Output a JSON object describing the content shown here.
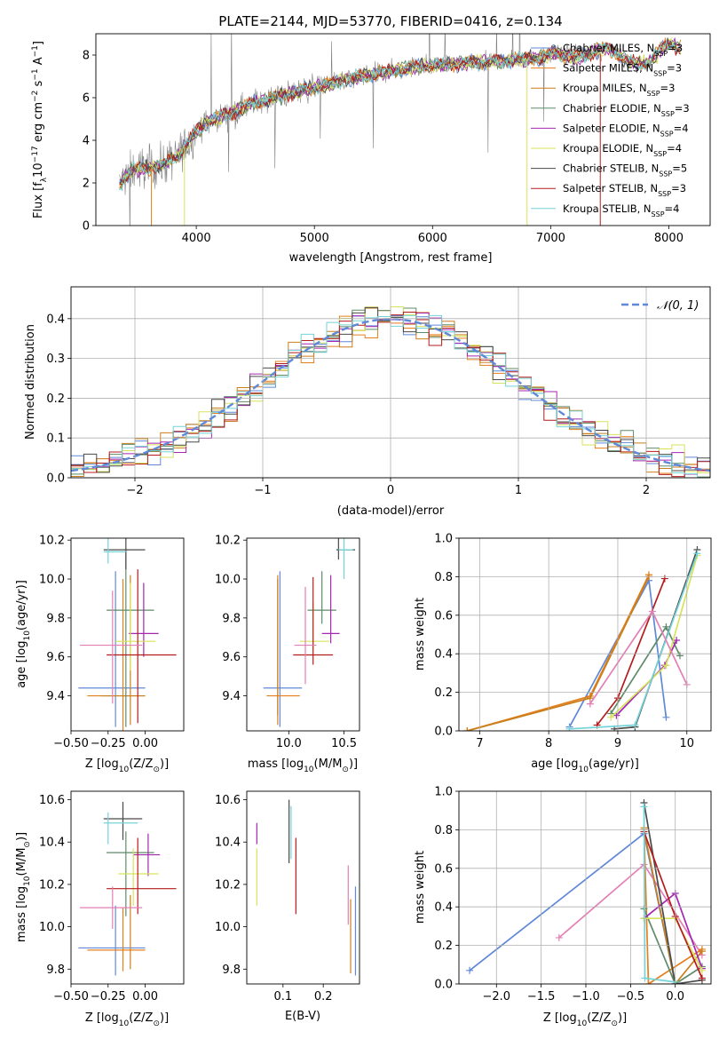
{
  "figure": {
    "title": "PLATE=2144, MJD=53770, FIBERID=0416, z=0.134"
  },
  "colors": {
    "Chabrier MILES": "#5f88d8",
    "Salpeter MILES": "#e57f1c",
    "Kroupa MILES": "#c97f1c",
    "Chabrier ELODIE": "#5e8b69",
    "Salpeter ELODIE": "#a526b0",
    "Kroupa ELODIE": "#d7e35a",
    "Chabrier STELIB": "#4a4a4a",
    "Salpeter STELIB": "#b51c1c",
    "Kroupa STELIB": "#74d3d8",
    "pink": "#e37fb5",
    "normal": "#5f88d8",
    "obs": "#808080"
  },
  "chart_data": [
    {
      "id": "spectrum",
      "type": "line",
      "xlabel": "wavelength [Angstrom, rest frame]",
      "ylabel": "Flux [f",
      "ylabel_parts": [
        "Flux [f",
        "λ",
        "10",
        "−17",
        " erg cm",
        "−2",
        " s",
        "−1",
        " A",
        "−1",
        "]"
      ],
      "xlim": [
        3150,
        8350
      ],
      "ylim": [
        0,
        9
      ],
      "xticks": [
        4000,
        5000,
        6000,
        7000,
        8000
      ],
      "yticks": [
        0,
        2,
        4,
        6,
        8
      ],
      "legend": "upper right",
      "continuum": {
        "x": [
          3350,
          3450,
          3550,
          3700,
          3850,
          4000,
          4100,
          4300,
          4500,
          4800,
          5100,
          5300,
          5600,
          5900,
          6200,
          6500,
          6800,
          7000,
          7200,
          7400,
          7600,
          7800,
          8000,
          8100
        ],
        "y": [
          1.9,
          2.6,
          2.7,
          2.8,
          3.3,
          4.4,
          4.9,
          5.3,
          5.8,
          6.2,
          6.6,
          6.9,
          7.2,
          7.5,
          7.6,
          7.7,
          7.8,
          8.0,
          8.2,
          8.1,
          7.8,
          7.9,
          8.3,
          8.0
        ]
      },
      "series": [
        {
          "name": "Chabrier MILES",
          "label": "Chabrier MILES, N",
          "sub": "SSP",
          "n": "=3"
        },
        {
          "name": "Salpeter MILES",
          "label": "Salpeter MILES, N",
          "sub": "SSP",
          "n": "=3"
        },
        {
          "name": "Kroupa MILES",
          "label": "Kroupa MILES, N",
          "sub": "SSP",
          "n": "=3"
        },
        {
          "name": "Chabrier ELODIE",
          "label": "Chabrier ELODIE, N",
          "sub": "SSP",
          "n": "=3"
        },
        {
          "name": "Salpeter ELODIE",
          "label": "Salpeter ELODIE, N",
          "sub": "SSP",
          "n": "=4"
        },
        {
          "name": "Kroupa ELODIE",
          "label": "Kroupa ELODIE, N",
          "sub": "SSP",
          "n": "=4"
        },
        {
          "name": "Chabrier STELIB",
          "label": "Chabrier STELIB, N",
          "sub": "SSP",
          "n": "=5"
        },
        {
          "name": "Salpeter STELIB",
          "label": "Salpeter STELIB, N",
          "sub": "SSP",
          "n": "=3"
        },
        {
          "name": "Kroupa STELIB",
          "label": "Kroupa STELIB, N",
          "sub": "SSP",
          "n": "=4"
        }
      ]
    },
    {
      "id": "residuals",
      "type": "bar",
      "xlabel": "(data-model)/error",
      "ylabel": "Normed distribution",
      "xlim": [
        -2.5,
        2.5
      ],
      "ylim": [
        0,
        0.48
      ],
      "xticks": [
        -2,
        -1,
        0,
        1,
        2
      ],
      "yticks": [
        0.0,
        0.1,
        0.2,
        0.3,
        0.4
      ],
      "grid": true,
      "legend_label": "N(0,1)",
      "legend_parts": [
        "𝒩",
        "(0, 1)"
      ],
      "bin_width": 0.1
    },
    {
      "id": "age_vs_Z",
      "type": "scatter",
      "xlabel_parts": [
        "Z [log",
        "10",
        "(Z/Z",
        "⊙",
        ")]"
      ],
      "ylabel_parts": [
        "age  [log",
        "10",
        "(age/yr)]"
      ],
      "xlim": [
        -0.5,
        0.26
      ],
      "ylim": [
        9.22,
        10.21
      ],
      "xticks": [
        -0.5,
        -0.25,
        0.0
      ],
      "yticks": [
        9.4,
        9.6,
        9.8,
        10.0,
        10.2
      ],
      "points": [
        {
          "s": "Chabrier MILES",
          "x": -0.2,
          "xerr": [
            0.25,
            0.2
          ],
          "y": 9.44,
          "yerr": [
            0.2,
            0.6
          ]
        },
        {
          "s": "Salpeter MILES",
          "x": -0.15,
          "xerr": [
            0.24,
            0.15
          ],
          "y": 9.4,
          "yerr": [
            0.2,
            0.6
          ]
        },
        {
          "s": "Kroupa MILES",
          "x": -0.1,
          "xerr": [
            0.2,
            0.1
          ],
          "y": 9.4,
          "yerr": [
            0.15,
            0.62
          ]
        },
        {
          "s": "Chabrier ELODIE",
          "x": -0.13,
          "xerr": [
            0.13,
            0.19
          ],
          "y": 9.84,
          "yerr": [
            0.6,
            0.3
          ]
        },
        {
          "s": "Salpeter ELODIE",
          "x": -0.01,
          "xerr": [
            0.1,
            0.1
          ],
          "y": 9.72,
          "yerr": [
            0.12,
            0.26
          ]
        },
        {
          "s": "Kroupa ELODIE",
          "x": -0.1,
          "xerr": [
            0.1,
            0.17
          ],
          "y": 9.68,
          "yerr": [
            0.15,
            0.3
          ]
        },
        {
          "s": "Chabrier STELIB",
          "x": -0.13,
          "xerr": [
            0.15,
            0.13
          ],
          "y": 10.15,
          "yerr": [
            0.1,
            0.06
          ]
        },
        {
          "s": "Salpeter STELIB",
          "x": -0.05,
          "xerr": [
            0.21,
            0.26
          ],
          "y": 9.61,
          "yerr": [
            0.35,
            0.44
          ]
        },
        {
          "s": "Kroupa STELIB",
          "x": -0.25,
          "xerr": [
            0.03,
            0.12
          ],
          "y": 10.14,
          "yerr": [
            0.06,
            0.07
          ]
        },
        {
          "s": "pink",
          "x": -0.22,
          "xerr": [
            0.22,
            0.2
          ],
          "y": 9.66,
          "yerr": [
            0.3,
            0.28
          ]
        }
      ]
    },
    {
      "id": "age_vs_mass",
      "type": "scatter",
      "xlabel_parts": [
        "mass [log",
        "10",
        "(M/M",
        "⊙",
        ")]"
      ],
      "xlim": [
        9.62,
        10.64
      ],
      "ylim": [
        9.22,
        10.21
      ],
      "xticks": [
        10.0,
        10.5
      ],
      "yticks": [
        9.4,
        9.6,
        9.8,
        10.0,
        10.2
      ],
      "points": [
        {
          "s": "Chabrier MILES",
          "x": 9.92,
          "xerr": [
            0.15,
            0.2
          ],
          "y": 9.44,
          "yerr": [
            0.2,
            0.6
          ]
        },
        {
          "s": "Salpeter MILES",
          "x": 9.9,
          "xerr": [
            0.1,
            0.2
          ],
          "y": 9.4,
          "yerr": [
            0.15,
            0.62
          ]
        },
        {
          "s": "Chabrier ELODIE",
          "x": 10.3,
          "xerr": [
            0.13,
            0.13
          ],
          "y": 9.84,
          "yerr": [
            0.07,
            0.2
          ]
        },
        {
          "s": "Salpeter ELODIE",
          "x": 10.38,
          "xerr": [
            0.08,
            0.08
          ],
          "y": 9.72,
          "yerr": [
            0.05,
            0.3
          ]
        },
        {
          "s": "Kroupa ELODIE",
          "x": 10.22,
          "xerr": [
            0.12,
            0.15
          ],
          "y": 9.68,
          "yerr": [
            0.05,
            0.2
          ]
        },
        {
          "s": "Chabrier STELIB",
          "x": 10.45,
          "xerr": [
            0.02,
            0.15
          ],
          "y": 10.15,
          "yerr": [
            0.05,
            0.06
          ]
        },
        {
          "s": "Salpeter STELIB",
          "x": 10.22,
          "xerr": [
            0.18,
            0.18
          ],
          "y": 9.61,
          "yerr": [
            0.05,
            0.4
          ]
        },
        {
          "s": "Kroupa STELIB",
          "x": 10.5,
          "xerr": [
            0.05,
            0.08
          ],
          "y": 10.15,
          "yerr": [
            0.15,
            0.07
          ]
        },
        {
          "s": "pink",
          "x": 10.15,
          "xerr": [
            0.1,
            0.1
          ],
          "y": 9.66,
          "yerr": [
            0.2,
            0.3
          ]
        },
        {
          "s": "Kroupa MILES",
          "x": 9.9,
          "xerr": [
            0,
            0
          ],
          "y": 9.6,
          "yerr": [
            0.3,
            0.4
          ]
        }
      ]
    },
    {
      "id": "massweight_vs_age",
      "type": "line",
      "xlabel_parts": [
        "age  [log",
        "10",
        "(age/yr)]"
      ],
      "ylabel": "mass weight",
      "xlim": [
        6.7,
        10.35
      ],
      "ylim": [
        0,
        1
      ],
      "xticks": [
        7,
        8,
        9,
        10
      ],
      "yticks": [
        0.0,
        0.2,
        0.4,
        0.6,
        0.8,
        1.0
      ],
      "grid": true,
      "series": [
        {
          "s": "Chabrier MILES",
          "x": [
            8.3,
            9.45,
            9.7
          ],
          "y": [
            0.02,
            0.78,
            0.07
          ]
        },
        {
          "s": "Salpeter MILES",
          "x": [
            6.82,
            8.6,
            9.45
          ],
          "y": [
            0.0,
            0.18,
            0.81
          ]
        },
        {
          "s": "Kroupa MILES",
          "x": [
            6.82,
            8.6,
            9.45
          ],
          "y": [
            0.0,
            0.17,
            0.8
          ]
        },
        {
          "s": "Chabrier ELODIE",
          "x": [
            8.9,
            9.7,
            9.9
          ],
          "y": [
            0.09,
            0.54,
            0.39
          ]
        },
        {
          "s": "Salpeter ELODIE",
          "x": [
            8.98,
            9.68,
            9.85
          ],
          "y": [
            0.08,
            0.34,
            0.47
          ]
        },
        {
          "s": "Kroupa ELODIE",
          "x": [
            8.9,
            9.7,
            10.15
          ],
          "y": [
            0.07,
            0.34,
            0.91
          ]
        },
        {
          "s": "Chabrier STELIB",
          "x": [
            8.95,
            9.25,
            10.15
          ],
          "y": [
            0.01,
            0.02,
            0.94
          ]
        },
        {
          "s": "Salpeter STELIB",
          "x": [
            8.7,
            9.0,
            9.68
          ],
          "y": [
            0.03,
            0.17,
            0.79
          ]
        },
        {
          "s": "Kroupa STELIB",
          "x": [
            8.3,
            9.25,
            10.15
          ],
          "y": [
            0.01,
            0.03,
            0.92
          ]
        },
        {
          "s": "pink",
          "x": [
            8.6,
            9.5,
            10.0
          ],
          "y": [
            0.14,
            0.62,
            0.24
          ]
        }
      ]
    },
    {
      "id": "mass_vs_Z",
      "type": "scatter",
      "xlabel_parts": [
        "Z [log",
        "10",
        "(Z/Z",
        "⊙",
        ")]"
      ],
      "ylabel_parts": [
        "mass [log",
        "10",
        "(M/M",
        "⊙",
        ")]"
      ],
      "xlim": [
        -0.5,
        0.26
      ],
      "ylim": [
        9.73,
        10.64
      ],
      "xticks": [
        -0.5,
        -0.25,
        0.0
      ],
      "yticks": [
        9.8,
        10.0,
        10.2,
        10.4,
        10.6
      ],
      "points": [
        {
          "s": "Chabrier MILES",
          "x": -0.2,
          "xerr": [
            0.25,
            0.2
          ],
          "y": 9.9,
          "yerr": [
            0.13,
            0.2
          ]
        },
        {
          "s": "Salpeter MILES",
          "x": -0.15,
          "xerr": [
            0.24,
            0.15
          ],
          "y": 9.89,
          "yerr": [
            0.1,
            0.2
          ]
        },
        {
          "s": "Kroupa MILES",
          "x": -0.1,
          "xerr": [
            0.0,
            0.0
          ],
          "y": 9.9,
          "yerr": [
            0.1,
            0.25
          ]
        },
        {
          "s": "Chabrier ELODIE",
          "x": -0.13,
          "xerr": [
            0.13,
            0.19
          ],
          "y": 10.35,
          "yerr": [
            0.3,
            0.1
          ]
        },
        {
          "s": "Salpeter ELODIE",
          "x": 0.02,
          "xerr": [
            0.1,
            0.08
          ],
          "y": 10.34,
          "yerr": [
            0.1,
            0.1
          ]
        },
        {
          "s": "Kroupa ELODIE",
          "x": -0.08,
          "xerr": [
            0.1,
            0.17
          ],
          "y": 10.25,
          "yerr": [
            0.15,
            0.12
          ]
        },
        {
          "s": "Chabrier STELIB",
          "x": -0.15,
          "xerr": [
            0.13,
            0.13
          ],
          "y": 10.51,
          "yerr": [
            0.1,
            0.08
          ]
        },
        {
          "s": "Salpeter STELIB",
          "x": -0.05,
          "xerr": [
            0.21,
            0.26
          ],
          "y": 10.18,
          "yerr": [
            0.12,
            0.24
          ]
        },
        {
          "s": "Kroupa STELIB",
          "x": -0.25,
          "xerr": [
            0.03,
            0.2
          ],
          "y": 10.49,
          "yerr": [
            0.1,
            0.05
          ]
        },
        {
          "s": "pink",
          "x": -0.22,
          "xerr": [
            0.22,
            0.2
          ],
          "y": 10.09,
          "yerr": [
            0.1,
            0.1
          ]
        }
      ]
    },
    {
      "id": "ebv",
      "type": "scatter",
      "xlabel": "E(B-V)",
      "xlim": [
        0.01,
        0.29
      ],
      "ylim": [
        9.73,
        10.64
      ],
      "xticks": [
        0.1,
        0.2
      ],
      "yticks": [
        9.8,
        10.0,
        10.2,
        10.4,
        10.6
      ],
      "points": [
        {
          "s": "Salpeter ELODIE",
          "x": 0.035,
          "y": 10.44,
          "yerr": [
            0.05,
            0.05
          ]
        },
        {
          "s": "Kroupa ELODIE",
          "x": 0.035,
          "y": 10.25,
          "yerr": [
            0.15,
            0.12
          ]
        },
        {
          "s": "Chabrier STELIB",
          "x": 0.115,
          "y": 10.45,
          "yerr": [
            0.15,
            0.15
          ]
        },
        {
          "s": "Kroupa STELIB",
          "x": 0.12,
          "y": 10.45,
          "yerr": [
            0.13,
            0.12
          ]
        },
        {
          "s": "Salpeter STELIB",
          "x": 0.132,
          "y": 10.24,
          "yerr": [
            0.18,
            0.18
          ]
        },
        {
          "s": "pink",
          "x": 0.262,
          "y": 10.19,
          "yerr": [
            0.18,
            0.1
          ]
        },
        {
          "s": "Kroupa MILES",
          "x": 0.268,
          "y": 9.96,
          "yerr": [
            0.18,
            0.17
          ]
        },
        {
          "s": "Chabrier MILES",
          "x": 0.28,
          "y": 9.99,
          "yerr": [
            0.22,
            0.2
          ]
        }
      ]
    },
    {
      "id": "massweight_vs_Z",
      "type": "line",
      "xlabel_parts": [
        "Z [log",
        "10",
        "(Z/Z",
        "⊙",
        ")]"
      ],
      "ylabel": "mass weight",
      "xlim": [
        -2.42,
        0.4
      ],
      "ylim": [
        0,
        1
      ],
      "xticks": [
        -2.0,
        -1.5,
        -1.0,
        -0.5,
        0.0
      ],
      "yticks": [
        0.0,
        0.2,
        0.4,
        0.6,
        0.8,
        1.0
      ],
      "grid": true,
      "series": [
        {
          "s": "Chabrier MILES",
          "x": [
            -2.3,
            -0.35,
            0.0
          ],
          "y": [
            0.07,
            0.78,
            0.0
          ]
        },
        {
          "s": "pink",
          "x": [
            -1.3,
            -0.35,
            0.3
          ],
          "y": [
            0.24,
            0.62,
            0.15
          ]
        },
        {
          "s": "Salpeter MILES",
          "x": [
            -0.35,
            -0.3,
            0.3
          ],
          "y": [
            0.81,
            0.0,
            0.18
          ]
        },
        {
          "s": "Kroupa MILES",
          "x": [
            -0.35,
            0.0,
            0.3
          ],
          "y": [
            0.8,
            0.0,
            0.17
          ]
        },
        {
          "s": "Chabrier ELODIE",
          "x": [
            -0.35,
            0.0,
            0.3
          ],
          "y": [
            0.39,
            0.0,
            0.09
          ]
        },
        {
          "s": "Salpeter ELODIE",
          "x": [
            -0.35,
            0.0,
            0.3
          ],
          "y": [
            0.34,
            0.47,
            0.08
          ]
        },
        {
          "s": "Kroupa ELODIE",
          "x": [
            -0.35,
            0.0,
            0.3
          ],
          "y": [
            0.34,
            0.34,
            0.07
          ]
        },
        {
          "s": "Chabrier STELIB",
          "x": [
            -0.35,
            0.0,
            0.3
          ],
          "y": [
            0.94,
            0.0,
            0.02
          ]
        },
        {
          "s": "Salpeter STELIB",
          "x": [
            -0.35,
            0.0,
            0.3
          ],
          "y": [
            0.79,
            0.35,
            0.03
          ]
        },
        {
          "s": "Kroupa STELIB",
          "x": [
            -0.35,
            -0.34,
            0.0
          ],
          "y": [
            0.92,
            0.03,
            0.01
          ]
        }
      ]
    }
  ]
}
